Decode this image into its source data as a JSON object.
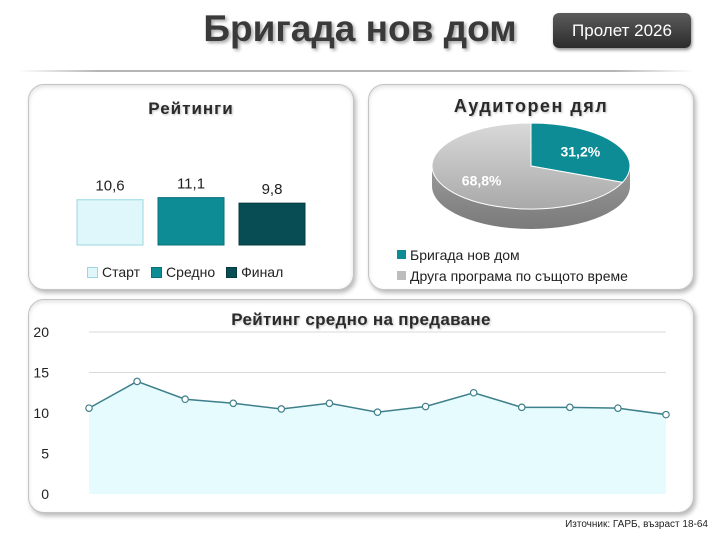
{
  "header": {
    "title": "Бригада нов дом",
    "season_badge": "Пролет 2026"
  },
  "footer": {
    "source": "Източник: ГАРБ, възраст 18-64"
  },
  "colors": {
    "start": "#dff6fa",
    "average": "#0e8c96",
    "final": "#084c54",
    "other": "#bdbdbd"
  },
  "chart_data": [
    {
      "type": "bar",
      "title": "Рейтинги",
      "categories": [
        "Старт",
        "Средно",
        "Финал"
      ],
      "values": [
        10.6,
        11.1,
        9.8
      ],
      "value_labels": [
        "10,6",
        "11,1",
        "9,8"
      ],
      "legend_position": "bottom",
      "axis_visible": false
    },
    {
      "type": "pie",
      "title": "Аудиторен дял",
      "slices": [
        {
          "name": "Бригада нов дом",
          "value": 31.2,
          "label": "31,2%"
        },
        {
          "name": "Друга програма по същото време",
          "value": 68.8,
          "label": "68,8%"
        }
      ],
      "legend_position": "bottom",
      "style": "3d"
    },
    {
      "type": "area",
      "title": "Рейтинг средно на предаване",
      "values": [
        10.6,
        13.9,
        11.7,
        11.2,
        10.5,
        11.2,
        10.1,
        10.8,
        12.5,
        10.7,
        10.7,
        10.6,
        9.8
      ],
      "ylim": [
        0,
        20
      ],
      "yticks": [
        "0",
        "5",
        "10",
        "15",
        "20"
      ],
      "grid": true,
      "line_color": "#3d7f8a",
      "fill_color": "#e6fbfd"
    }
  ]
}
